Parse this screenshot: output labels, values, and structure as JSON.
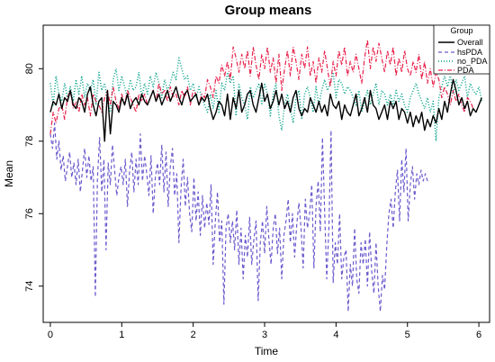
{
  "chart_data": {
    "type": "line",
    "title": "Group means",
    "xlabel": "Time",
    "ylabel": "Mean",
    "xlim": [
      -0.1,
      6.15
    ],
    "ylim": [
      73,
      81.2
    ],
    "x_ticks": [
      0,
      1,
      2,
      3,
      4,
      5,
      6
    ],
    "y_ticks": [
      74,
      76,
      78,
      80
    ],
    "grid": false,
    "legend": {
      "title": "Group",
      "position": "top-right",
      "entries": [
        "Overall",
        "hsPDA",
        "no_PDA",
        "PDA"
      ]
    },
    "series": [
      {
        "name": "Overall",
        "color": "#000000",
        "dash": "solid",
        "x_start": 0,
        "x_step": 0.04,
        "values": [
          78.8,
          79.1,
          79.0,
          79.3,
          78.9,
          79.2,
          79.1,
          79.4,
          79.0,
          78.9,
          79.2,
          79.1,
          78.8,
          79.3,
          79.5,
          79.0,
          78.7,
          79.1,
          79.2,
          78.0,
          79.4,
          78.2,
          79.1,
          79.0,
          78.8,
          79.2,
          79.0,
          79.3,
          78.9,
          79.1,
          79.2,
          79.0,
          79.3,
          79.1,
          79.0,
          79.2,
          79.4,
          79.1,
          79.3,
          79.0,
          79.2,
          79.4,
          79.1,
          79.3,
          79.5,
          79.2,
          79.0,
          79.3,
          79.4,
          79.1,
          79.2,
          79.3,
          79.0,
          79.2,
          79.1,
          79.3,
          78.9,
          78.6,
          78.8,
          79.1,
          79.0,
          78.7,
          79.3,
          78.6,
          79.2,
          78.9,
          79.4,
          78.8,
          79.0,
          79.3,
          79.4,
          79.0,
          78.8,
          79.2,
          79.6,
          79.1,
          79.3,
          78.9,
          79.1,
          79.4,
          79.0,
          79.3,
          78.9,
          79.1,
          78.8,
          79.2,
          79.4,
          78.9,
          78.7,
          78.9,
          78.8,
          79.2,
          79.0,
          78.8,
          79.1,
          78.8,
          79.0,
          78.7,
          79.3,
          79.0,
          78.9,
          79.1,
          78.6,
          79.0,
          78.8,
          78.7,
          79.0,
          79.3,
          78.7,
          78.9,
          79.2,
          78.8,
          79.4,
          79.0,
          78.9,
          78.6,
          78.8,
          79.0,
          78.6,
          79.1,
          78.9,
          79.1,
          78.6,
          78.9,
          78.8,
          78.5,
          78.8,
          78.4,
          78.7,
          78.5,
          78.8,
          78.3,
          78.6,
          78.4,
          78.7,
          78.5,
          78.9,
          78.6,
          79.1,
          78.8,
          79.3,
          79.7,
          79.4,
          79.0,
          79.2,
          78.9,
          79.1,
          78.7,
          78.9,
          78.8,
          79.0,
          79.2
        ]
      },
      {
        "name": "hsPDA",
        "color": "#6a5acd",
        "dash": "dashed",
        "x_start": 0,
        "x_step": 0.03,
        "values": [
          78.2,
          77.8,
          78.5,
          77.5,
          78.0,
          77.2,
          77.6,
          76.9,
          77.3,
          77.7,
          77.0,
          77.4,
          76.8,
          77.5,
          76.6,
          77.2,
          77.8,
          77.0,
          77.6,
          76.9,
          77.3,
          73.7,
          77.0,
          78.1,
          76.6,
          77.5,
          75.0,
          77.4,
          76.8,
          77.9,
          77.2,
          76.5,
          77.0,
          77.3,
          76.8,
          77.5,
          76.2,
          77.2,
          77.7,
          76.6,
          77.5,
          76.8,
          78.2,
          76.9,
          77.6,
          77.1,
          76.5,
          77.6,
          76.0,
          77.0,
          77.4,
          76.8,
          77.9,
          76.6,
          77.7,
          76.2,
          77.3,
          77.8,
          76.5,
          77.1,
          75.2,
          76.7,
          77.5,
          76.2,
          77.0,
          76.0,
          75.5,
          77.0,
          75.8,
          76.6,
          75.4,
          76.5,
          75.6,
          76.3,
          75.7,
          76.8,
          74.6,
          75.8,
          76.6,
          75.2,
          75.8,
          73.5,
          75.6,
          76.0,
          75.2,
          75.8,
          75.0,
          76.1,
          74.6,
          75.6,
          74.2,
          75.4,
          74.8,
          75.9,
          74.6,
          75.3,
          75.8,
          73.6,
          75.2,
          75.8,
          74.9,
          76.2,
          75.3,
          74.6,
          75.6,
          76.0,
          74.9,
          75.6,
          74.2,
          75.4,
          75.8,
          76.4,
          75.2,
          76.0,
          74.8,
          75.7,
          76.3,
          75.6,
          74.5,
          76.4,
          75.6,
          76.0,
          76.8,
          74.5,
          76.2,
          76.9,
          75.5,
          78.1,
          76.1,
          74.2,
          75.6,
          78.3,
          74.1,
          75.2,
          74.6,
          76.0,
          74.2,
          74.8,
          75.0,
          73.3,
          74.6,
          74.0,
          75.6,
          74.2,
          73.8,
          75.2,
          74.6,
          75.3,
          74.0,
          75.5,
          74.4,
          73.8,
          75.2,
          74.0,
          73.3,
          74.3,
          73.9,
          75.1,
          76.0,
          76.4,
          75.6,
          76.6,
          77.2,
          75.8,
          77.5,
          76.6,
          77.8,
          75.8,
          76.8,
          77.3,
          76.4,
          77.1,
          76.8,
          77.2,
          76.9,
          77.1,
          76.9
        ]
      },
      {
        "name": "no_PDA",
        "color": "#00a087",
        "dash": "dotted",
        "x_start": 0,
        "x_step": 0.04,
        "values": [
          79.6,
          79.0,
          79.8,
          79.3,
          79.1,
          79.6,
          79.2,
          79.5,
          79.1,
          79.7,
          79.3,
          79.8,
          79.2,
          79.6,
          79.4,
          79.7,
          79.0,
          79.9,
          79.4,
          79.6,
          79.1,
          78.8,
          79.7,
          80.0,
          79.4,
          79.8,
          79.5,
          79.2,
          79.7,
          79.4,
          79.5,
          79.9,
          79.2,
          79.6,
          79.3,
          79.8,
          79.5,
          79.9,
          79.6,
          79.2,
          79.7,
          79.4,
          79.6,
          79.9,
          79.7,
          80.3,
          80.0,
          79.7,
          79.8,
          79.4,
          79.6,
          79.2,
          79.5,
          79.2,
          79.0,
          78.8,
          79.3,
          78.9,
          79.4,
          78.8,
          79.6,
          79.4,
          79.9,
          79.6,
          79.8,
          78.7,
          79.6,
          79.2,
          79.0,
          78.6,
          79.5,
          79.2,
          79.4,
          79.6,
          79.0,
          79.6,
          79.3,
          78.7,
          79.3,
          79.6,
          78.7,
          78.3,
          79.0,
          79.3,
          78.9,
          78.5,
          79.2,
          79.4,
          78.6,
          79.3,
          79.5,
          79.2,
          78.8,
          79.5,
          79.0,
          79.4,
          79.7,
          79.4,
          79.6,
          79.9,
          79.2,
          79.7,
          79.6,
          79.3,
          79.5,
          79.4,
          79.2,
          79.0,
          79.4,
          78.8,
          79.1,
          79.4,
          79.0,
          79.3,
          79.6,
          79.0,
          79.4,
          79.3,
          79.0,
          79.3,
          79.0,
          79.4,
          79.1,
          79.3,
          79.0,
          78.8,
          79.2,
          79.4,
          79.6,
          79.3,
          79.1,
          78.9,
          79.2,
          78.8,
          79.1,
          78.0,
          79.2,
          79.5,
          79.8,
          79.5,
          79.8,
          79.3,
          79.7,
          79.4,
          79.6,
          79.8,
          79.2,
          79.6,
          79.4,
          79.3,
          79.5,
          79.1
        ]
      },
      {
        "name": "PDA",
        "color": "#e8204a",
        "dash": "dashdot",
        "x_start": 0,
        "x_step": 0.04,
        "values": [
          78.2,
          78.8,
          78.5,
          78.9,
          79.0,
          78.6,
          79.2,
          79.4,
          78.9,
          79.1,
          78.8,
          79.3,
          79.0,
          79.2,
          78.7,
          79.3,
          79.1,
          79.0,
          78.8,
          79.2,
          79.4,
          79.0,
          79.5,
          79.1,
          78.9,
          79.3,
          79.0,
          79.4,
          79.2,
          79.0,
          78.8,
          79.3,
          79.1,
          79.3,
          79.0,
          79.2,
          79.4,
          79.1,
          79.6,
          79.3,
          79.4,
          79.1,
          79.5,
          79.2,
          79.3,
          79.0,
          79.4,
          79.2,
          79.5,
          79.0,
          79.4,
          79.3,
          79.0,
          79.3,
          79.2,
          79.7,
          79.5,
          79.2,
          79.8,
          79.6,
          80.1,
          79.8,
          80.2,
          79.7,
          80.6,
          80.3,
          79.9,
          80.4,
          80.0,
          80.5,
          79.8,
          80.6,
          80.1,
          79.7,
          80.4,
          80.0,
          80.6,
          79.9,
          80.3,
          79.6,
          80.4,
          79.4,
          80.0,
          80.5,
          79.8,
          80.6,
          80.2,
          79.7,
          80.4,
          80.0,
          80.6,
          79.8,
          80.2,
          79.6,
          80.3,
          79.9,
          80.5,
          80.0,
          79.5,
          80.2,
          79.8,
          80.5,
          80.1,
          80.6,
          79.8,
          80.2,
          79.9,
          80.4,
          80.0,
          79.6,
          80.3,
          80.8,
          80.0,
          80.6,
          80.2,
          80.7,
          80.3,
          79.9,
          80.5,
          80.1,
          80.6,
          79.8,
          80.3,
          79.9,
          80.5,
          80.0,
          79.8,
          80.2,
          79.9,
          80.4,
          79.7,
          80.2,
          79.6,
          80.0,
          79.5,
          79.9,
          79.7,
          79.2,
          79.5,
          79.3,
          79.0,
          79.4,
          79.1,
          79.3,
          79.0,
          78.8,
          79.2,
          79.1,
          78.9
        ]
      }
    ]
  }
}
